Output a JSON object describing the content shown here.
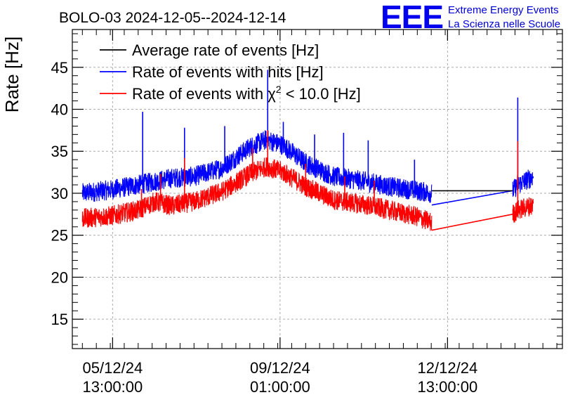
{
  "header": {
    "title": "BOLO-03 2024-12-05--2024-12-14",
    "logo_text": "EEE",
    "org_line1": "Extreme Energy Events",
    "org_line2": "La Scienza nelle Scuole"
  },
  "chart_data": {
    "type": "line",
    "title": "BOLO-03 2024-12-05--2024-12-14",
    "xlabel": "",
    "ylabel": "Rate [Hz]",
    "x_unit": "days since 2024-12-05 00:00",
    "xlim": [
      -0.18,
      8.6
    ],
    "ylim": [
      11.5,
      49.5
    ],
    "grid": true,
    "legend_position": "top-left",
    "x_ticks": [
      {
        "value": 0.5417,
        "date": "05/12/24",
        "time": "13:00:00"
      },
      {
        "value": 3.5417,
        "date": "09/12/24",
        "time": "01:00:00"
      },
      {
        "value": 6.5417,
        "date": "12/12/24",
        "time": "13:00:00"
      }
    ],
    "y_ticks": [
      {
        "value": 15,
        "label": "15"
      },
      {
        "value": 20,
        "label": "20"
      },
      {
        "value": 25,
        "label": "25"
      },
      {
        "value": 30,
        "label": "30"
      },
      {
        "value": 35,
        "label": "35"
      },
      {
        "value": 40,
        "label": "40"
      },
      {
        "value": 45,
        "label": "45"
      }
    ],
    "series": [
      {
        "name": "Average rate of events [Hz]",
        "color": "#000000",
        "noise": 0,
        "x": [
          6.26,
          7.71
        ],
        "y": [
          30.3,
          30.3
        ],
        "spikes": []
      },
      {
        "name": "Rate of events with hits [Hz]",
        "color": "#0000ff",
        "noise": 1.2,
        "x": [
          0.0,
          0.5,
          1.0,
          1.6,
          2.0,
          2.5,
          3.0,
          3.3,
          3.6,
          4.0,
          4.5,
          5.0,
          5.5,
          6.0,
          6.26,
          7.71,
          7.8,
          8.08
        ],
        "y": [
          30.0,
          30.4,
          31.0,
          31.8,
          32.0,
          33.0,
          35.5,
          36.4,
          35.7,
          33.6,
          32.0,
          31.5,
          30.8,
          30.3,
          30.0,
          30.3,
          31.0,
          32.0
        ],
        "spikes": [
          [
            1.08,
            39.7
          ],
          [
            1.83,
            37.8
          ],
          [
            2.55,
            38.0
          ],
          [
            3.32,
            44.7
          ],
          [
            3.6,
            38.5
          ],
          [
            4.16,
            37.0
          ],
          [
            4.68,
            37.2
          ],
          [
            5.12,
            36.3
          ],
          [
            5.95,
            34.0
          ],
          [
            7.8,
            41.4
          ]
        ]
      },
      {
        "name": "Rate of events with χ² < 10.0 [Hz]",
        "color": "#ff0000",
        "noise": 1.2,
        "x": [
          0.0,
          0.5,
          1.0,
          1.3,
          1.6,
          2.0,
          2.5,
          3.0,
          3.3,
          3.6,
          4.0,
          4.5,
          5.0,
          5.5,
          6.0,
          6.26,
          7.71,
          7.8,
          8.08
        ],
        "y": [
          27.0,
          27.3,
          28.0,
          29.0,
          28.5,
          29.0,
          30.2,
          32.3,
          33.2,
          32.5,
          30.8,
          29.2,
          28.7,
          28.0,
          27.2,
          26.5,
          27.5,
          28.0,
          28.6
        ],
        "spikes": [
          [
            1.06,
            30.5
          ],
          [
            1.4,
            32.3
          ],
          [
            1.83,
            34.2
          ],
          [
            3.05,
            35.4
          ],
          [
            3.32,
            37.5
          ],
          [
            4.0,
            33.5
          ],
          [
            4.7,
            32.0
          ],
          [
            5.23,
            31.5
          ],
          [
            7.8,
            36.2
          ]
        ]
      }
    ],
    "connectors": [
      {
        "color": "#0000ff",
        "from": [
          6.26,
          28.6
        ],
        "to": [
          7.71,
          30.3
        ]
      },
      {
        "color": "#ff0000",
        "from": [
          6.26,
          25.6
        ],
        "to": [
          7.71,
          27.5
        ]
      }
    ],
    "legend": {
      "items": [
        {
          "label": "Average rate of events [Hz]",
          "color": "#000000"
        },
        {
          "label": "Rate of events with hits [Hz]",
          "color": "#0000ff"
        },
        {
          "label_prefix": "Rate of events with ",
          "chi": "χ",
          "sup": "2",
          "label_suffix": " < 10.0 [Hz]",
          "color": "#ff0000"
        }
      ]
    }
  }
}
